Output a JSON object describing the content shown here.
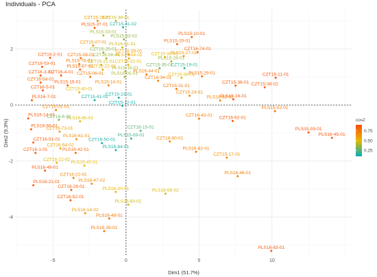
{
  "chart_data": {
    "type": "scatter",
    "title": "Individuals - PCA",
    "xlabel": "Dim1 (51.7%)",
    "ylabel": "Dim2 (9.3%)",
    "xlim": [
      -7.6,
      15.5
    ],
    "ylim": [
      -5.4,
      3.4
    ],
    "xticks": [
      -5,
      0,
      5,
      10
    ],
    "yticks": [
      -4,
      -2,
      0,
      2
    ],
    "grid": true,
    "reference_lines": {
      "x": 0,
      "y": 0,
      "style": "dashed"
    },
    "legend": {
      "title": "cos2",
      "placement": "right",
      "ticks": [
        0.75,
        0.5,
        0.25
      ],
      "range": [
        0.1,
        0.9
      ],
      "colors": [
        "#00AFBB",
        "#E7B800",
        "#FC4E07"
      ]
    },
    "points": [
      {
        "label": "CZT15-26-01",
        "x": -1.95,
        "y": 3.0,
        "cos2": 0.62
      },
      {
        "label": "CZT15-38-01",
        "x": -0.7,
        "y": 3.0,
        "cos2": 0.45
      },
      {
        "label": "CZT15-41-02",
        "x": -0.2,
        "y": 2.77,
        "cos2": 0.15
      },
      {
        "label": "PLS15-37-01",
        "x": -2.15,
        "y": 2.75,
        "cos2": 0.85
      },
      {
        "label": "PLS15-33-01",
        "x": -1.55,
        "y": 2.48,
        "cos2": 0.4
      },
      {
        "label": "PLS15-33-02",
        "x": -0.15,
        "y": 2.34,
        "cos2": 0.35
      },
      {
        "label": "PLS15-10-01",
        "x": 4.5,
        "y": 2.42,
        "cos2": 0.82
      },
      {
        "label": "PLS15-20-01",
        "x": 3.5,
        "y": 2.17,
        "cos2": 0.8
      },
      {
        "label": "CZT15-07-01",
        "x": -2.25,
        "y": 2.12,
        "cos2": 0.65
      },
      {
        "label": "PLS16-81-01",
        "x": -0.25,
        "y": 2.05,
        "cos2": 0.45
      },
      {
        "label": "CZT16-74-01",
        "x": 4.9,
        "y": 1.88,
        "cos2": 0.8
      },
      {
        "label": "CZT15-25-01",
        "x": -1.55,
        "y": 1.87,
        "cos2": 0.35
      },
      {
        "label": "CZT15-39-01",
        "x": 0.2,
        "y": 1.8,
        "cos2": 0.6
      },
      {
        "label": "CZT16-2-01",
        "x": -5.2,
        "y": 1.68,
        "cos2": 0.85
      },
      {
        "label": "CZT15-08-01",
        "x": -3.1,
        "y": 1.67,
        "cos2": 0.75
      },
      {
        "label": "CZT16-08-01",
        "x": -1.35,
        "y": 1.66,
        "cos2": 0.38
      },
      {
        "label": "PLS15-04-01",
        "x": 0.2,
        "y": 1.66,
        "cos2": 0.55
      },
      {
        "label": "CZT15-30-01",
        "x": 2.65,
        "y": 1.7,
        "cos2": 0.5
      },
      {
        "label": "PLS15-27-01",
        "x": 3.95,
        "y": 1.74,
        "cos2": 0.62
      },
      {
        "label": "PLS15-28-01",
        "x": 3.1,
        "y": 1.55,
        "cos2": 0.38
      },
      {
        "label": "PLS16-78-01",
        "x": -3.2,
        "y": 1.46,
        "cos2": 0.72
      },
      {
        "label": "CZT15-21-01",
        "x": -1.7,
        "y": 1.43,
        "cos2": 0.45
      },
      {
        "label": "CZT16-32-01",
        "x": 0.15,
        "y": 1.43,
        "cos2": 0.5
      },
      {
        "label": "CZT15-35-01",
        "x": 2.3,
        "y": 1.31,
        "cos2": 0.3
      },
      {
        "label": "CZT15-19-01",
        "x": 4.0,
        "y": 1.31,
        "cos2": 0.2
      },
      {
        "label": "CZT16-53-01",
        "x": -5.75,
        "y": 1.36,
        "cos2": 0.85
      },
      {
        "label": "PLS16-67-01",
        "x": -3.15,
        "y": 1.26,
        "cos2": 0.8
      },
      {
        "label": "CZT15-22-01",
        "x": -1.6,
        "y": 1.26,
        "cos2": 0.55
      },
      {
        "label": "PLS15-18-01",
        "x": -0.05,
        "y": 1.2,
        "cos2": 0.4
      },
      {
        "label": "PLS16-44-01",
        "x": 1.4,
        "y": 1.09,
        "cos2": 0.72
      },
      {
        "label": "CZT16-3-01",
        "x": -5.85,
        "y": 1.05,
        "cos2": 0.85
      },
      {
        "label": "CZT16-4-01",
        "x": -4.45,
        "y": 1.05,
        "cos2": 0.85
      },
      {
        "label": "CZT15-06-01",
        "x": -2.45,
        "y": 1.0,
        "cos2": 0.75
      },
      {
        "label": "PLS16-05-01",
        "x": -0.1,
        "y": 1.0,
        "cos2": 0.4
      },
      {
        "label": "CZT16-36-01",
        "x": 3.8,
        "y": 0.97,
        "cos2": 0.5
      },
      {
        "label": "PLS15-29-01",
        "x": 5.2,
        "y": 1.02,
        "cos2": 0.78
      },
      {
        "label": "CZT15-11-01",
        "x": 10.25,
        "y": 0.97,
        "cos2": 0.88
      },
      {
        "label": "CZT16-54-01",
        "x": -5.85,
        "y": 0.8,
        "cos2": 0.8
      },
      {
        "label": "PLS15-15-01",
        "x": -4.0,
        "y": 0.7,
        "cos2": 0.85
      },
      {
        "label": "PLS15-14-01",
        "x": -1.2,
        "y": 0.7,
        "cos2": 0.7
      },
      {
        "label": "CZT16-34-01",
        "x": 2.2,
        "y": 0.86,
        "cos2": 0.72
      },
      {
        "label": "CZT15-38-01",
        "x": 7.5,
        "y": 0.69,
        "cos2": 0.85
      },
      {
        "label": "CZT15-38-02",
        "x": 9.5,
        "y": 0.63,
        "cos2": 0.82
      },
      {
        "label": "CZT16-5-01",
        "x": -5.7,
        "y": 0.52,
        "cos2": 0.85
      },
      {
        "label": "CZT15-40-01",
        "x": -3.2,
        "y": 0.45,
        "cos2": 0.5
      },
      {
        "label": "CZT15-31-01",
        "x": 3.45,
        "y": 0.57,
        "cos2": 0.75
      },
      {
        "label": "CZT15-24-01",
        "x": 4.35,
        "y": 0.33,
        "cos2": 0.68
      },
      {
        "label": "PLS16-83-02",
        "x": 6.45,
        "y": 0.16,
        "cos2": 0.7
      },
      {
        "label": "PLS16-16-01",
        "x": 7.35,
        "y": 0.2,
        "cos2": 0.85
      },
      {
        "label": "PLS16-7-01",
        "x": -6.45,
        "y": 0.17,
        "cos2": 0.85
      },
      {
        "label": "CZT15-41-01",
        "x": -2.15,
        "y": 0.17,
        "cos2": 0.15
      },
      {
        "label": "CZT15-23-01",
        "x": -0.5,
        "y": 0.26,
        "cos2": 0.15
      },
      {
        "label": "CZT15-12-01",
        "x": -0.25,
        "y": -0.03,
        "cos2": 0.12
      },
      {
        "label": "PLS15-02-01",
        "x": 10.2,
        "y": -0.22,
        "cos2": 0.75
      },
      {
        "label": "CZT15-01-01",
        "x": -4.8,
        "y": -0.18,
        "cos2": 0.7
      },
      {
        "label": "PLS16-14-01",
        "x": -6.7,
        "y": -0.48,
        "cos2": 0.85
      },
      {
        "label": "PLS16-85-01",
        "x": -3.15,
        "y": -0.58,
        "cos2": 0.48
      },
      {
        "label": "CZT16-6-01",
        "x": -4.6,
        "y": -0.53,
        "cos2": 0.3
      },
      {
        "label": "CZT16-43-01",
        "x": 5.0,
        "y": -0.49,
        "cos2": 0.72
      },
      {
        "label": "CZT16-62-01",
        "x": 7.3,
        "y": -0.57,
        "cos2": 0.85
      },
      {
        "label": "PLS15-03-01",
        "x": 12.5,
        "y": -0.98,
        "cos2": 0.88
      },
      {
        "label": "PLS16-45-01",
        "x": 14.1,
        "y": -1.17,
        "cos2": 0.88
      },
      {
        "label": "PLS16-55-01",
        "x": -6.5,
        "y": -0.87,
        "cos2": 0.85
      },
      {
        "label": "CZT16-73-01",
        "x": -4.55,
        "y": -0.95,
        "cos2": 0.6
      },
      {
        "label": "CZT16-15-01",
        "x": 1.0,
        "y": -0.92,
        "cos2": 0.25
      },
      {
        "label": "PLS15-09-01",
        "x": 0.35,
        "y": -1.2,
        "cos2": 0.2
      },
      {
        "label": "CZT16-80-01",
        "x": 3.0,
        "y": -1.3,
        "cos2": 0.68
      },
      {
        "label": "PLS16-61-01",
        "x": -3.4,
        "y": -1.22,
        "cos2": 0.65
      },
      {
        "label": "CZT16-51-01",
        "x": -6.35,
        "y": -1.34,
        "cos2": 0.85
      },
      {
        "label": "CZT16-54-02",
        "x": -4.5,
        "y": -1.55,
        "cos2": 0.6
      },
      {
        "label": "CZT16-50-01",
        "x": -1.65,
        "y": -1.36,
        "cos2": 0.15
      },
      {
        "label": "PLS16-84-01",
        "x": -0.7,
        "y": -1.61,
        "cos2": 0.15
      },
      {
        "label": "PLS16-82-01",
        "x": 4.8,
        "y": -1.67,
        "cos2": 0.72
      },
      {
        "label": "CZT16-1-01",
        "x": -6.2,
        "y": -1.71,
        "cos2": 0.85
      },
      {
        "label": "PLS16-42-01",
        "x": -3.45,
        "y": -1.71,
        "cos2": 0.8
      },
      {
        "label": "CZT15-17-01",
        "x": 6.9,
        "y": -1.88,
        "cos2": 0.65
      },
      {
        "label": "CZT16-22-02",
        "x": -4.75,
        "y": -2.06,
        "cos2": 0.5
      },
      {
        "label": "PLS15-47-01",
        "x": -2.85,
        "y": -2.16,
        "cos2": 0.5
      },
      {
        "label": "PLS16-49-01",
        "x": -5.55,
        "y": -2.34,
        "cos2": 0.85
      },
      {
        "label": "PLS16-46-01",
        "x": 7.65,
        "y": -2.54,
        "cos2": 0.72
      },
      {
        "label": "CZT16-22-01",
        "x": -3.6,
        "y": -2.6,
        "cos2": 0.7
      },
      {
        "label": "PLS16-21-01",
        "x": -6.35,
        "y": -2.86,
        "cos2": 0.85
      },
      {
        "label": "PLS16-47-02",
        "x": -2.35,
        "y": -2.81,
        "cos2": 0.68
      },
      {
        "label": "CZT16-29-01",
        "x": -3.75,
        "y": -3.03,
        "cos2": 0.85
      },
      {
        "label": "PLS16-20-01",
        "x": -0.7,
        "y": -3.1,
        "cos2": 0.5
      },
      {
        "label": "PLS16-55-02",
        "x": 2.7,
        "y": -3.16,
        "cos2": 0.48
      },
      {
        "label": "CZT16-52-01",
        "x": -3.8,
        "y": -3.4,
        "cos2": 0.85
      },
      {
        "label": "PLS16-83-02",
        "x": 0.15,
        "y": -3.55,
        "cos2": 0.45
      },
      {
        "label": "PLS16-14-02",
        "x": -2.8,
        "y": -3.86,
        "cos2": 0.62
      },
      {
        "label": "PLS16-48-01",
        "x": -1.15,
        "y": -4.05,
        "cos2": 0.75
      },
      {
        "label": "PLS16-35-01",
        "x": -1.5,
        "y": -4.5,
        "cos2": 0.75
      },
      {
        "label": "PLS16-83-01",
        "x": 9.95,
        "y": -5.2,
        "cos2": 0.85
      }
    ]
  }
}
